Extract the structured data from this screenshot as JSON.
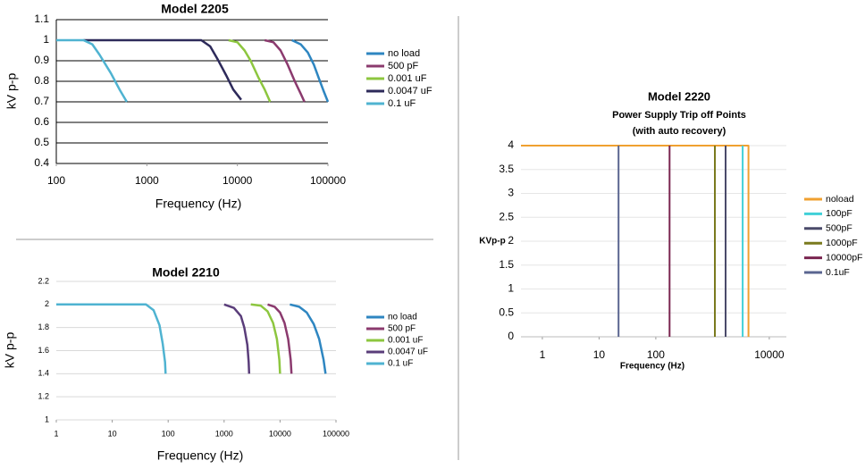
{
  "chart_data": [
    {
      "type": "line",
      "title": "Model 2205",
      "x_label": "Frequency (Hz)",
      "y_label": "kV p-p",
      "log_x": true,
      "xlim": [
        100,
        100000
      ],
      "xticks": [
        100,
        1000,
        10000,
        100000
      ],
      "ylim": [
        0.4,
        1.1
      ],
      "yticks": [
        0.4,
        0.5,
        0.6,
        0.7,
        0.8,
        0.9,
        1,
        1.1
      ],
      "grid": true,
      "grid_color": "#000000",
      "series": [
        {
          "name": "no load",
          "color": "#2e86c1",
          "x": [
            40000,
            50000,
            60000,
            70000,
            80000,
            90000,
            100000
          ],
          "values": [
            1,
            0.98,
            0.94,
            0.88,
            0.81,
            0.75,
            0.7
          ]
        },
        {
          "name": "500 pF",
          "color": "#8b3a6e",
          "x": [
            20000,
            25000,
            30000,
            36000,
            43000,
            50000,
            55000
          ],
          "values": [
            1,
            0.99,
            0.95,
            0.88,
            0.8,
            0.74,
            0.7
          ]
        },
        {
          "name": "0.001 uF",
          "color": "#8dc63f",
          "x": [
            8000,
            10000,
            12000,
            14000,
            17000,
            20000,
            23000
          ],
          "values": [
            1,
            0.99,
            0.95,
            0.9,
            0.82,
            0.76,
            0.7
          ]
        },
        {
          "name": "0.0047 uF",
          "color": "#2d2a5a",
          "x": [
            200,
            4000,
            5000,
            6000,
            7500,
            9000,
            11000
          ],
          "values": [
            1,
            1,
            0.97,
            0.91,
            0.83,
            0.76,
            0.71
          ]
        },
        {
          "name": "0.1 uF",
          "color": "#4fb3d1",
          "x": [
            100,
            200,
            250,
            300,
            400,
            500,
            600
          ],
          "values": [
            1,
            1,
            0.98,
            0.93,
            0.84,
            0.76,
            0.7
          ]
        }
      ]
    },
    {
      "type": "line",
      "title": "Model 2210",
      "x_label": "Frequency (Hz)",
      "y_label": "kV p-p",
      "log_x": true,
      "xlim": [
        1,
        100000
      ],
      "xticks": [
        1,
        10,
        100,
        1000,
        10000,
        100000
      ],
      "ylim": [
        1,
        2.2
      ],
      "yticks": [
        1,
        1.2,
        1.4,
        1.6,
        1.8,
        2,
        2.2
      ],
      "grid": true,
      "grid_color": "#d9d9d9",
      "series": [
        {
          "name": "no load",
          "color": "#2e86c1",
          "x": [
            15000,
            22000,
            30000,
            40000,
            50000,
            60000,
            65000
          ],
          "values": [
            2,
            1.98,
            1.93,
            1.83,
            1.7,
            1.52,
            1.4
          ]
        },
        {
          "name": "500 pF",
          "color": "#8b3a6e",
          "x": [
            6000,
            8000,
            10000,
            12000,
            14000,
            15500,
            16000
          ],
          "values": [
            2,
            1.98,
            1.93,
            1.84,
            1.7,
            1.52,
            1.4
          ]
        },
        {
          "name": "0.001 uF",
          "color": "#8dc63f",
          "x": [
            3000,
            4500,
            6000,
            7500,
            8800,
            9700,
            10000
          ],
          "values": [
            2,
            1.99,
            1.94,
            1.84,
            1.7,
            1.52,
            1.4
          ]
        },
        {
          "name": "0.0047 uF",
          "color": "#5a3d7a",
          "x": [
            1000,
            1500,
            2000,
            2300,
            2600,
            2750,
            2800
          ],
          "values": [
            2,
            1.97,
            1.9,
            1.8,
            1.65,
            1.5,
            1.4
          ]
        },
        {
          "name": "0.1 uF",
          "color": "#4fb3d1",
          "x": [
            1,
            40,
            55,
            70,
            80,
            88,
            90
          ],
          "values": [
            2,
            2,
            1.95,
            1.82,
            1.66,
            1.5,
            1.4
          ]
        }
      ]
    },
    {
      "type": "line",
      "title": "Model 2220",
      "subtitle": [
        "Power Supply Trip off Points",
        "(with auto recovery)"
      ],
      "x_label": "Frequency (Hz)",
      "y_label": "KVp-p",
      "log_x": true,
      "xlim": [
        0.42,
        20000
      ],
      "xticks": [
        1,
        10,
        100,
        10000
      ],
      "ylim": [
        0,
        4
      ],
      "yticks": [
        0,
        0.5,
        1,
        1.5,
        2,
        2.5,
        3,
        3.5,
        4
      ],
      "grid": true,
      "grid_color": "#e6e6e6",
      "series": [
        {
          "name": "noload",
          "color": "#f0a030",
          "x": [
            0.42,
            4300,
            4300
          ],
          "values": [
            4,
            4,
            0
          ]
        },
        {
          "name": "100pF",
          "color": "#40d0d8",
          "x": [
            3400,
            3400
          ],
          "values": [
            0,
            4
          ]
        },
        {
          "name": "500pF",
          "color": "#4a4a6a",
          "x": [
            1700,
            1700
          ],
          "values": [
            0,
            4
          ]
        },
        {
          "name": "1000pF",
          "color": "#7a7a1e",
          "x": [
            1100,
            1100
          ],
          "values": [
            0,
            4
          ]
        },
        {
          "name": "10000pF",
          "color": "#7a2550",
          "x": [
            175,
            175
          ],
          "values": [
            0,
            4
          ]
        },
        {
          "name": "0.1uF",
          "color": "#5a6590",
          "x": [
            22,
            22
          ],
          "values": [
            0,
            4
          ]
        }
      ]
    }
  ]
}
